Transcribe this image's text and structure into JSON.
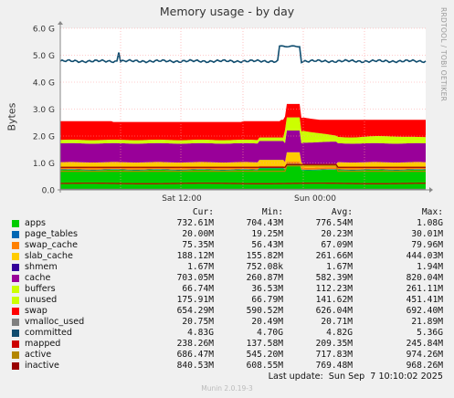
{
  "chart_data": {
    "type": "area",
    "title": "Memory usage - by day",
    "ylabel": "Bytes",
    "ylim": [
      0,
      6.0
    ],
    "y_unit": "G",
    "yticks": [
      "0.0",
      "1.0 G",
      "2.0 G",
      "3.0 G",
      "4.0 G",
      "5.0 G",
      "6.0 G"
    ],
    "xticks": [
      "Sat 12:00",
      "Sun 00:00"
    ],
    "stacked": [
      "apps",
      "page_tables",
      "swap_cache",
      "slab_cache",
      "shmem",
      "cache",
      "buffers",
      "unused",
      "swap"
    ],
    "series": [
      {
        "name": "apps",
        "color": "#00cc00",
        "cur": "732.61M",
        "min": "704.43M",
        "avg": "776.54M",
        "max": "1.08G",
        "level": 0.73
      },
      {
        "name": "page_tables",
        "color": "#0066b3",
        "cur": "20.00M",
        "min": "19.25M",
        "avg": "20.23M",
        "max": "30.01M",
        "level": 0.02
      },
      {
        "name": "swap_cache",
        "color": "#ff8000",
        "cur": "75.35M",
        "min": "56.43M",
        "avg": "67.09M",
        "max": "79.96M",
        "level": 0.075
      },
      {
        "name": "slab_cache",
        "color": "#ffcc00",
        "cur": "188.12M",
        "min": "155.82M",
        "avg": "261.66M",
        "max": "444.03M",
        "level": 0.19
      },
      {
        "name": "shmem",
        "color": "#330099",
        "cur": "1.67M",
        "min": "752.08k",
        "avg": "1.67M",
        "max": "1.94M",
        "level": 0.002
      },
      {
        "name": "cache",
        "color": "#990099",
        "cur": "703.05M",
        "min": "260.87M",
        "avg": "582.39M",
        "max": "820.04M",
        "level": 0.7
      },
      {
        "name": "buffers",
        "color": "#ccff00",
        "cur": "66.74M",
        "min": "36.53M",
        "avg": "112.23M",
        "max": "261.11M",
        "level": 0.067
      },
      {
        "name": "unused",
        "color": "#ccff00",
        "cur": "175.91M",
        "min": "66.79M",
        "avg": "141.62M",
        "max": "451.41M",
        "level": 0.176
      },
      {
        "name": "swap",
        "color": "#ff0000",
        "cur": "654.29M",
        "min": "590.52M",
        "avg": "626.04M",
        "max": "692.40M",
        "level": 0.654
      },
      {
        "name": "vmalloc_used",
        "color": "#808080",
        "cur": "20.75M",
        "min": "20.49M",
        "avg": "20.71M",
        "max": "21.89M"
      },
      {
        "name": "committed",
        "color": "#0f4c6e",
        "cur": "4.83G",
        "min": "4.70G",
        "avg": "4.82G",
        "max": "5.36G"
      },
      {
        "name": "mapped",
        "color": "#cc0000",
        "cur": "238.26M",
        "min": "137.58M",
        "avg": "209.35M",
        "max": "245.84M"
      },
      {
        "name": "active",
        "color": "#b38600",
        "cur": "686.47M",
        "min": "545.20M",
        "avg": "717.83M",
        "max": "974.26M"
      },
      {
        "name": "inactive",
        "color": "#990000",
        "cur": "840.53M",
        "min": "608.55M",
        "avg": "769.48M",
        "max": "968.26M"
      }
    ],
    "grid": true
  },
  "legend": {
    "cur_label": "Cur:",
    "min_label": "Min:",
    "avg_label": "Avg:",
    "max_label": "Max:"
  },
  "side_text": "RRDTOOL / TOBI OETIKER",
  "last_update": "Last update:  Sun Sep  7 10:10:02 2025",
  "footer": "Munin 2.0.19-3",
  "colors": {
    "background": "#f0f0f0",
    "plot_bg": "#ffffff",
    "grid": "#ff9999"
  }
}
